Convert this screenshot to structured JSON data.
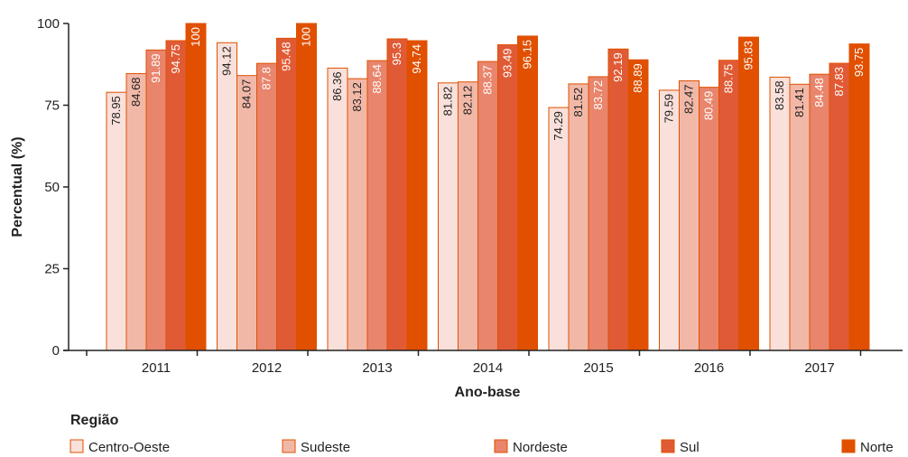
{
  "chart_data": {
    "type": "bar",
    "categories": [
      "2011",
      "2012",
      "2013",
      "2014",
      "2015",
      "2016",
      "2017"
    ],
    "series": [
      {
        "name": "Centro-Oeste",
        "color": "#f9e0da",
        "label_color": "#222222",
        "values": [
          78.95,
          94.12,
          86.36,
          81.82,
          74.29,
          79.59,
          83.58
        ]
      },
      {
        "name": "Sudeste",
        "color": "#f2b8a7",
        "label_color": "#222222",
        "values": [
          84.68,
          84.07,
          83.12,
          82.12,
          81.52,
          82.47,
          81.41
        ]
      },
      {
        "name": "Nordeste",
        "color": "#e8856c",
        "label_color": "#ffffff",
        "values": [
          91.89,
          87.8,
          88.64,
          88.37,
          83.72,
          80.49,
          84.48
        ]
      },
      {
        "name": "Sul",
        "color": "#e05b35",
        "label_color": "#ffffff",
        "values": [
          94.75,
          95.48,
          95.3,
          93.49,
          92.19,
          88.75,
          87.83
        ]
      },
      {
        "name": "Norte",
        "color": "#e05000",
        "label_color": "#ffffff",
        "values": [
          100,
          100,
          94.74,
          96.15,
          88.89,
          95.83,
          93.75
        ]
      }
    ],
    "value_labels": [
      [
        "78.95",
        "94.12",
        "86.36",
        "81.82",
        "74.29",
        "79.59",
        "83.58"
      ],
      [
        "84.68",
        "84.07",
        "83.12",
        "82.12",
        "81.52",
        "82.47",
        "81.41"
      ],
      [
        "91.89",
        "87.8",
        "88.64",
        "88.37",
        "83.72",
        "80.49",
        "84.48"
      ],
      [
        "94.75",
        "95.48",
        "95.3",
        "93.49",
        "92.19",
        "88.75",
        "87.83"
      ],
      [
        "100",
        "100",
        "94.74",
        "96.15",
        "88.89",
        "95.83",
        "93.75"
      ]
    ],
    "xlabel": "Ano-base",
    "ylabel": "Percentual (%)",
    "ylim": [
      0,
      100
    ],
    "yticks": [
      0,
      25,
      50,
      75,
      100
    ],
    "grid": false,
    "legend_title": "Região",
    "legend_position": "bottom"
  }
}
